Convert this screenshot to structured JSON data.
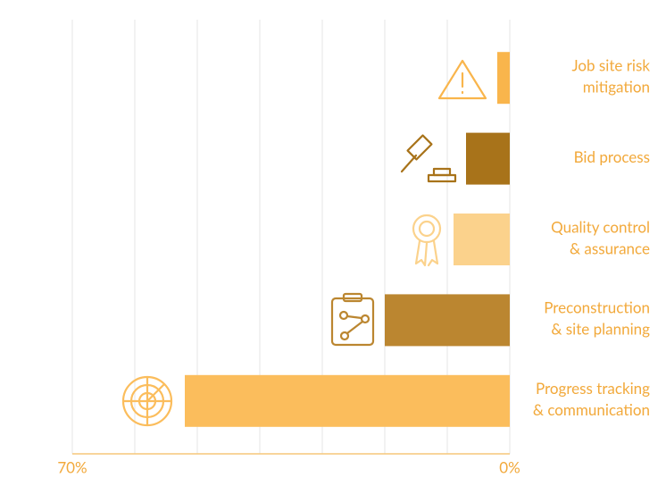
{
  "chart_data": {
    "type": "bar",
    "orientation": "horizontal",
    "categories": [
      [
        "Job site risk",
        "mitigation"
      ],
      [
        "Bid process"
      ],
      [
        "Quality control",
        "& assurance"
      ],
      [
        "Preconstruction",
        "& site planning"
      ],
      [
        "Progress tracking",
        "& communication"
      ]
    ],
    "values": [
      2,
      7,
      9,
      20,
      52
    ],
    "colors": [
      "#f9b54c",
      "#a8731a",
      "#fbd28c",
      "#bb8630",
      "#fbbd5c"
    ],
    "xlim": [
      70,
      0
    ],
    "xticks": [
      {
        "value": 70,
        "label": "70%"
      },
      {
        "value": 0,
        "label": "0%"
      }
    ],
    "grid": [
      0,
      10,
      20,
      30,
      40,
      50,
      60,
      70
    ]
  }
}
